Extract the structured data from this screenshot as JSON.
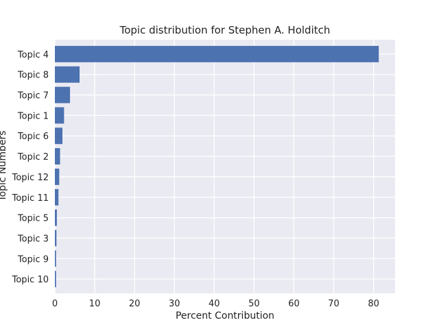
{
  "chart_data": {
    "type": "bar",
    "orientation": "horizontal",
    "title": "Topic distribution for Stephen A. Holditch",
    "xlabel": "Percent Contribution",
    "ylabel": "Topic Numbers",
    "categories": [
      "Topic 4",
      "Topic 8",
      "Topic 7",
      "Topic 1",
      "Topic 6",
      "Topic 2",
      "Topic 12",
      "Topic 11",
      "Topic 5",
      "Topic 3",
      "Topic 9",
      "Topic 10"
    ],
    "values": [
      81.3,
      6.2,
      3.8,
      2.3,
      1.9,
      1.3,
      1.1,
      0.9,
      0.5,
      0.4,
      0.3,
      0.3
    ],
    "xlim": [
      0,
      85.4
    ],
    "xticks": [
      0,
      10,
      20,
      30,
      40,
      50,
      60,
      70,
      80
    ],
    "grid": true,
    "bar_color": "#4c72b0",
    "background_color": "#eaeaf2"
  }
}
